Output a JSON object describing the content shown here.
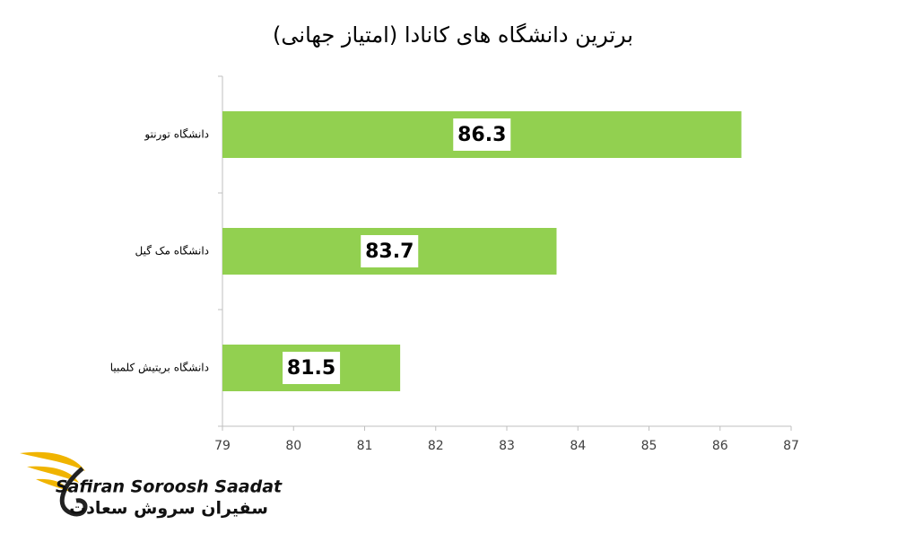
{
  "chart_data": {
    "type": "bar",
    "orientation": "horizontal",
    "title": "برترین دانشگاه های کانادا (امتیاز جهانی)",
    "categories": [
      "دانشگاه تورنتو",
      "دانشگاه مک گیل",
      "دانشگاه بریتیش کلمبیا"
    ],
    "values": [
      86.3,
      83.7,
      81.5
    ],
    "color": "#92d050",
    "xlim": [
      79,
      87
    ],
    "xticks": [
      79,
      80,
      81,
      82,
      83,
      84,
      85,
      86,
      87
    ],
    "grid": false
  },
  "logo": {
    "name_en": "Safiran Soroosh Saadat",
    "name_fa": "سفیران سروش سعادت"
  }
}
